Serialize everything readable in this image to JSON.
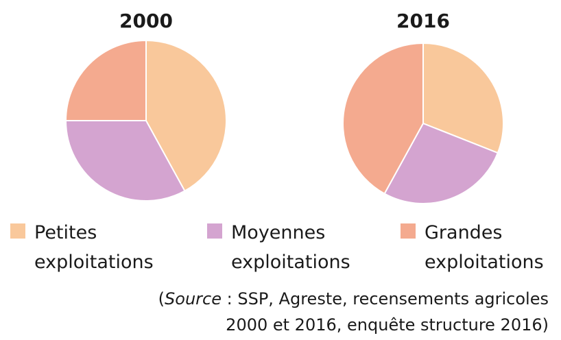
{
  "chart_data": [
    {
      "type": "pie",
      "title": "2000",
      "categories": [
        "Petites exploitations",
        "Moyennes exploitations",
        "Grandes exploitations"
      ],
      "values": [
        42,
        33,
        25
      ],
      "colors": [
        "#f9c89b",
        "#d4a4d0",
        "#f4aa8f"
      ]
    },
    {
      "type": "pie",
      "title": "2016",
      "categories": [
        "Petites exploitations",
        "Moyennes exploitations",
        "Grandes exploitations"
      ],
      "values": [
        31,
        27,
        42
      ],
      "colors": [
        "#f9c89b",
        "#d4a4d0",
        "#f4aa8f"
      ]
    }
  ],
  "source": {
    "open": "(",
    "label": "Source",
    "line1": " : SSP, Agreste, recensements agricoles",
    "line2": "2000 et 2016, enquête structure 2016)"
  }
}
